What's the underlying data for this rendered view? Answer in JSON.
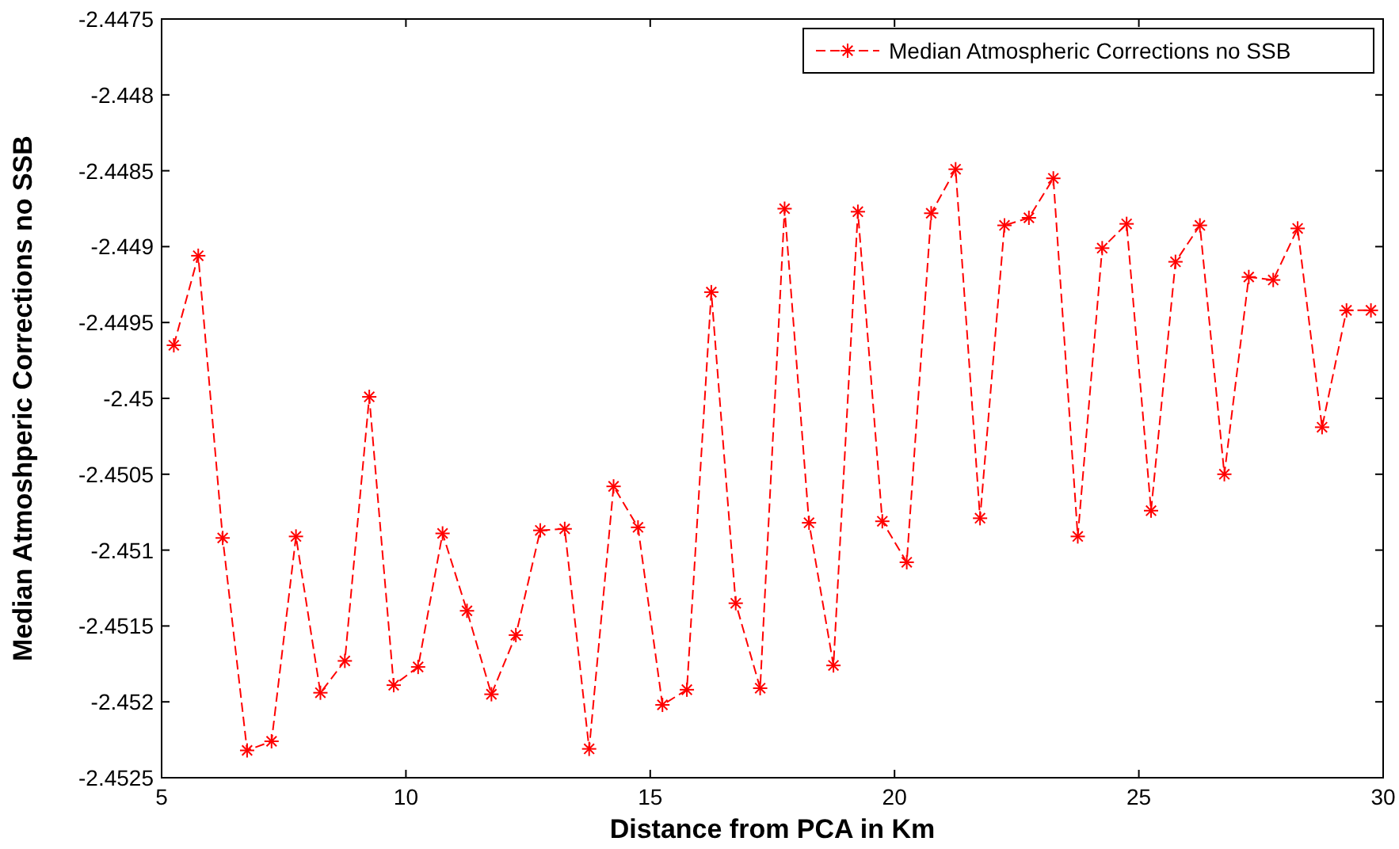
{
  "chart_data": {
    "type": "line",
    "xlabel": "Distance from PCA in Km",
    "ylabel": "Median Atmoshperic Corrections no SSB",
    "x": [
      5.25,
      5.75,
      6.25,
      6.75,
      7.25,
      7.75,
      8.25,
      8.75,
      9.25,
      9.75,
      10.25,
      10.75,
      11.25,
      11.75,
      12.25,
      12.75,
      13.25,
      13.75,
      14.25,
      14.75,
      15.25,
      15.75,
      16.25,
      16.75,
      17.25,
      17.75,
      18.25,
      18.75,
      19.25,
      19.75,
      20.25,
      20.75,
      21.25,
      21.75,
      22.25,
      22.75,
      23.25,
      23.75,
      24.25,
      24.75,
      25.25,
      25.75,
      26.25,
      26.75,
      27.25,
      27.75,
      28.25,
      28.75,
      29.25,
      29.75
    ],
    "series": [
      {
        "name": "Median Atmospheric Corrections no SSB",
        "color": "#ff0000",
        "values": [
          -2.44965,
          -2.44906,
          -2.45092,
          -2.45232,
          -2.45226,
          -2.45091,
          -2.45194,
          -2.45173,
          -2.44999,
          -2.45189,
          -2.45177,
          -2.45089,
          -2.4514,
          -2.45195,
          -2.45156,
          -2.45087,
          -2.45086,
          -2.45231,
          -2.45058,
          -2.45085,
          -2.45202,
          -2.45192,
          -2.4493,
          -2.45135,
          -2.45191,
          -2.44875,
          -2.45082,
          -2.45176,
          -2.44877,
          -2.45081,
          -2.45108,
          -2.44878,
          -2.44849,
          -2.45079,
          -2.44886,
          -2.44881,
          -2.44855,
          -2.45091,
          -2.44901,
          -2.44885,
          -2.45074,
          -2.4491,
          -2.44886,
          -2.4505,
          -2.4492,
          -2.44922,
          -2.44888,
          -2.45019,
          -2.44942,
          -2.44942
        ]
      }
    ],
    "xlim": [
      5,
      30
    ],
    "xticks": [
      5,
      10,
      15,
      20,
      25,
      30
    ],
    "ylim": [
      -2.4525,
      -2.4475
    ],
    "yticks": [
      -2.4525,
      -2.452,
      -2.4515,
      -2.451,
      -2.4505,
      -2.45,
      -2.4495,
      -2.449,
      -2.4485,
      -2.448,
      -2.4475
    ],
    "grid": false,
    "legend": "top right",
    "marker": "cross",
    "line_style": "dashed"
  }
}
